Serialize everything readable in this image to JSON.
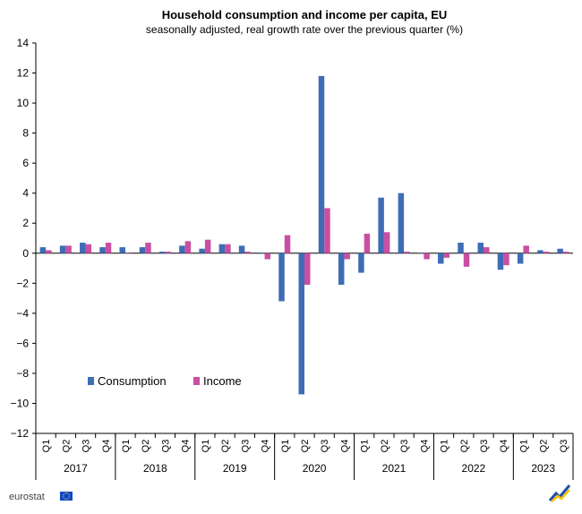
{
  "colors": {
    "consumption": "#3e6db5",
    "income": "#c94fa2",
    "axis": "#000000",
    "grid": "#cfcfcf"
  },
  "footer": {
    "brand": "eurostat"
  },
  "chart_data": {
    "type": "bar",
    "title": "Household consumption and income per capita, EU",
    "subtitle": "seasonally adjusted, real growth rate over the previous quarter (%)",
    "xlabel": "",
    "ylabel": "",
    "ylim": [
      -12,
      14
    ],
    "yticks": [
      -12,
      -10,
      -8,
      -6,
      -4,
      -2,
      0,
      2,
      4,
      6,
      8,
      10,
      12,
      14
    ],
    "grid": false,
    "legend_position": "lower-left",
    "categories": [
      "Q1",
      "Q2",
      "Q3",
      "Q4",
      "Q1",
      "Q2",
      "Q3",
      "Q4",
      "Q1",
      "Q2",
      "Q3",
      "Q4",
      "Q1",
      "Q2",
      "Q3",
      "Q4",
      "Q1",
      "Q2",
      "Q3",
      "Q4",
      "Q1",
      "Q2",
      "Q3",
      "Q4",
      "Q1",
      "Q2",
      "Q3"
    ],
    "years": [
      {
        "label": "2017",
        "count": 4
      },
      {
        "label": "2018",
        "count": 4
      },
      {
        "label": "2019",
        "count": 4
      },
      {
        "label": "2020",
        "count": 4
      },
      {
        "label": "2021",
        "count": 4
      },
      {
        "label": "2022",
        "count": 4
      },
      {
        "label": "2023",
        "count": 3
      }
    ],
    "series": [
      {
        "name": "Consumption",
        "values": [
          0.4,
          0.5,
          0.7,
          0.4,
          0.4,
          0.4,
          0.1,
          0.5,
          0.3,
          0.6,
          0.5,
          0.0,
          -3.2,
          -9.4,
          11.8,
          -2.1,
          -1.3,
          3.7,
          4.0,
          0.0,
          -0.7,
          0.7,
          0.7,
          -1.1,
          -0.7,
          0.2,
          0.3
        ]
      },
      {
        "name": "Income",
        "values": [
          0.2,
          0.5,
          0.6,
          0.7,
          0.0,
          0.7,
          0.1,
          0.8,
          0.9,
          0.6,
          0.1,
          -0.4,
          1.2,
          -2.1,
          3.0,
          -0.4,
          1.3,
          1.4,
          0.1,
          -0.4,
          -0.3,
          -0.9,
          0.4,
          -0.8,
          0.5,
          0.1,
          0.1
        ]
      }
    ]
  }
}
